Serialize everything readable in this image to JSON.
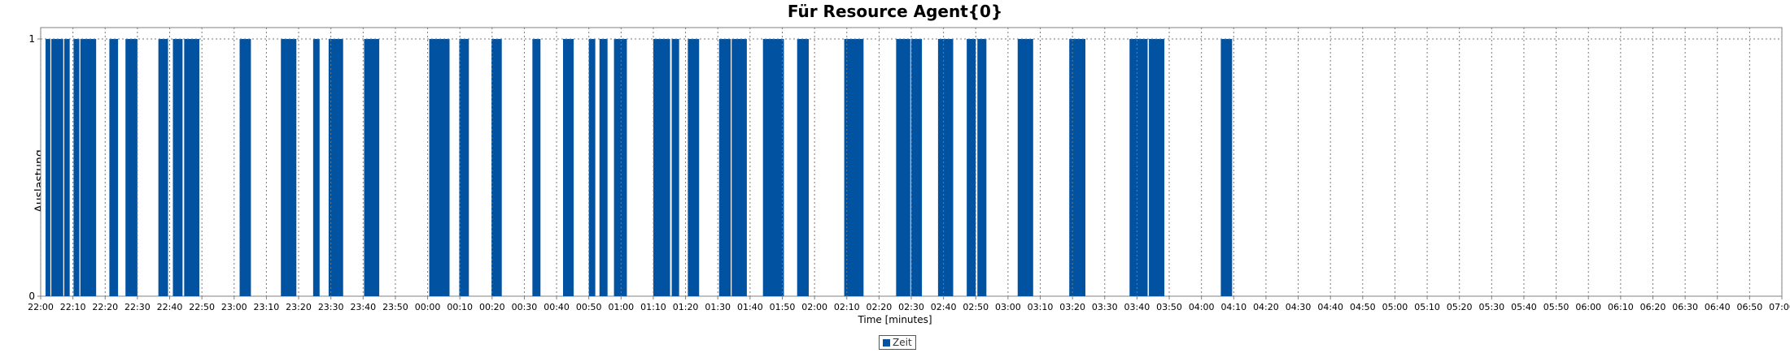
{
  "chart_data": {
    "type": "bar",
    "title": "Für Resource Agent{0}",
    "xlabel": "Time [minutes]",
    "ylabel": "Auslastung",
    "x_range_minutes": [
      0,
      540
    ],
    "x_ticks": [
      "22:00",
      "22:10",
      "22:20",
      "22:30",
      "22:40",
      "22:50",
      "23:00",
      "23:10",
      "23:20",
      "23:30",
      "23:40",
      "23:50",
      "00:00",
      "00:10",
      "00:20",
      "00:30",
      "00:40",
      "00:50",
      "01:00",
      "01:10",
      "01:20",
      "01:30",
      "01:40",
      "01:50",
      "02:00",
      "02:10",
      "02:20",
      "02:30",
      "02:40",
      "02:50",
      "03:00",
      "03:10",
      "03:20",
      "03:30",
      "03:40",
      "03:50",
      "04:00",
      "04:10",
      "04:20",
      "04:30",
      "04:40",
      "04:50",
      "05:00",
      "05:10",
      "05:20",
      "05:30",
      "05:40",
      "05:50",
      "06:00",
      "06:10",
      "06:20",
      "06:30",
      "06:40",
      "06:50",
      "07:00"
    ],
    "y_ticks": [
      "0",
      "1"
    ],
    "ylim": [
      0,
      1
    ],
    "grid": true,
    "legend_position": "bottom-center",
    "series": [
      {
        "name": "Zeit",
        "color": "#0152A1",
        "value": 1,
        "intervals": [
          [
            1.5,
            3
          ],
          [
            3.3,
            7
          ],
          [
            7.3,
            9
          ],
          [
            10.2,
            12
          ],
          [
            12.3,
            17.2
          ],
          [
            21.3,
            24
          ],
          [
            26.3,
            30
          ],
          [
            36.5,
            39.5
          ],
          [
            41,
            44
          ],
          [
            44.5,
            49.2
          ],
          [
            61.7,
            65.2
          ],
          [
            74.5,
            79.3
          ],
          [
            84.5,
            86.5
          ],
          [
            89.3,
            93.8
          ],
          [
            100.3,
            105
          ],
          [
            120.5,
            126.8
          ],
          [
            129.8,
            132.8
          ],
          [
            139.8,
            143
          ],
          [
            152.5,
            155
          ],
          [
            162,
            165.3
          ],
          [
            170,
            172
          ],
          [
            173.3,
            175.8
          ],
          [
            177.8,
            181.8
          ],
          [
            190,
            195.2
          ],
          [
            195.7,
            198
          ],
          [
            200.7,
            204.2
          ],
          [
            210.4,
            214
          ],
          [
            214.3,
            219
          ],
          [
            224,
            230.5
          ],
          [
            234.6,
            238.2
          ],
          [
            249.2,
            255.2
          ],
          [
            265.3,
            269.7
          ],
          [
            269.9,
            273.3
          ],
          [
            278.3,
            283
          ],
          [
            287.2,
            290
          ],
          [
            290.5,
            293.3
          ],
          [
            303,
            307.8
          ],
          [
            319,
            324
          ],
          [
            337.7,
            343.3
          ],
          [
            343.7,
            348.5
          ],
          [
            366,
            369.5
          ]
        ]
      }
    ]
  }
}
